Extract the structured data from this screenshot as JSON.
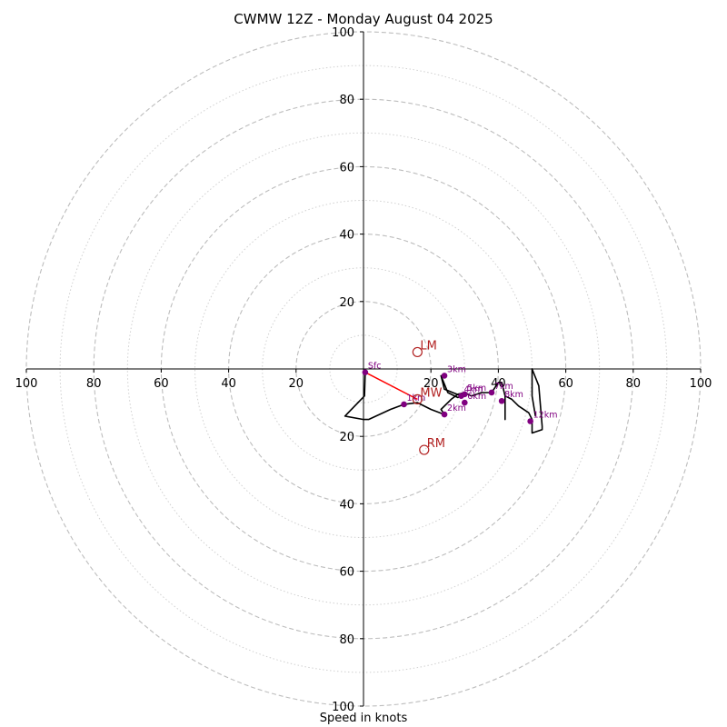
{
  "chart_data": {
    "type": "hodograph",
    "title": "CWMW 12Z - Monday August 04 2025",
    "xlabel": "Speed in knots",
    "units": "knots",
    "ring_max": 100,
    "major_rings": [
      20,
      40,
      60,
      80,
      100
    ],
    "minor_rings": [
      10,
      30,
      50,
      70,
      90
    ],
    "x_ticks": [
      "100",
      "80",
      "60",
      "40",
      "20",
      "20",
      "40",
      "60",
      "80",
      "100"
    ],
    "y_ticks": [
      "100",
      "80",
      "60",
      "40",
      "20",
      "20",
      "40",
      "60",
      "80",
      "100"
    ],
    "grid": true,
    "colors": {
      "trace": "#000000",
      "height_marker": "#800080",
      "vector_label": "#b22222",
      "shear_line": "#ff0000",
      "grid": "#bdbdbd"
    },
    "trace": [
      [
        0.5,
        -1
      ],
      [
        0.3,
        -8
      ],
      [
        -5.5,
        -14
      ],
      [
        0,
        -15
      ],
      [
        1.5,
        -15
      ],
      [
        8,
        -12
      ],
      [
        12,
        -10.5
      ],
      [
        16,
        -10
      ],
      [
        20,
        -12
      ],
      [
        24,
        -13.5
      ],
      [
        23,
        -12
      ],
      [
        26,
        -9
      ],
      [
        28,
        -7.5
      ],
      [
        30,
        -7
      ],
      [
        29,
        -8
      ],
      [
        24,
        -6
      ],
      [
        23,
        -2
      ],
      [
        25,
        -7
      ],
      [
        28,
        -8.5
      ],
      [
        30,
        -7
      ],
      [
        32,
        -8
      ],
      [
        35,
        -7
      ],
      [
        38,
        -7
      ],
      [
        40,
        -4
      ],
      [
        41,
        -4
      ],
      [
        42,
        -8
      ],
      [
        42,
        -15
      ],
      [
        42,
        -8
      ],
      [
        44,
        -9
      ],
      [
        46,
        -11
      ],
      [
        49,
        -13
      ],
      [
        50,
        -15
      ],
      [
        50,
        -19
      ],
      [
        53,
        -18
      ],
      [
        53,
        -17
      ],
      [
        52,
        -5
      ],
      [
        50,
        0
      ],
      [
        50,
        -8
      ],
      [
        51,
        -14
      ]
    ],
    "heights": [
      {
        "label": "Sfc",
        "u": 0.5,
        "v": -1
      },
      {
        "label": "1km",
        "u": 12,
        "v": -10.5
      },
      {
        "label": "2km",
        "u": 24,
        "v": -13.5
      },
      {
        "label": "3km",
        "u": 24,
        "v": -2
      },
      {
        "label": "4km",
        "u": 29,
        "v": -8
      },
      {
        "label": "5km",
        "u": 30,
        "v": -7.5
      },
      {
        "label": "6km",
        "u": 30,
        "v": -10
      },
      {
        "label": "7km",
        "u": 38,
        "v": -7
      },
      {
        "label": "8km",
        "u": 41,
        "v": -9.5
      },
      {
        "label": "12km",
        "u": 49.5,
        "v": -15.5
      }
    ],
    "vectors": [
      {
        "label": "LM",
        "u": 16,
        "v": 5
      },
      {
        "label": "MW",
        "u": 16,
        "v": -9
      },
      {
        "label": "RM",
        "u": 18,
        "v": -24
      }
    ],
    "shear_line": [
      [
        0.5,
        -1
      ],
      [
        16,
        -9
      ]
    ]
  }
}
